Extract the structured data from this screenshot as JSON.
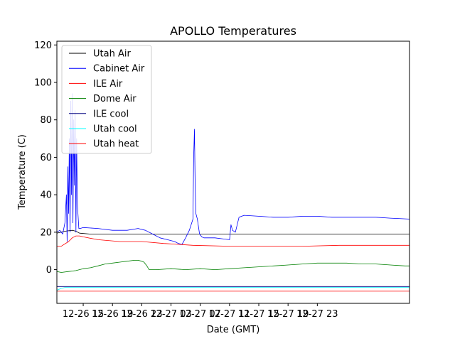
{
  "chart_data": {
    "type": "line",
    "title": "APOLLO Temperatures",
    "xlabel": "Date (GMT)",
    "ylabel": "Temperature (C)",
    "xlim": [
      11.4,
      59.6
    ],
    "ylim": [
      -18,
      122
    ],
    "grid": false,
    "legend_position": "top-left",
    "x_unit": "hours since 12-26 00:00 GMT",
    "x_ticks": [
      {
        "value": 15,
        "label": "12-26 15"
      },
      {
        "value": 19,
        "label": "12-26 19"
      },
      {
        "value": 23,
        "label": "12-26 23"
      },
      {
        "value": 27,
        "label": "12-27 03"
      },
      {
        "value": 31,
        "label": "12-27 07"
      },
      {
        "value": 35,
        "label": "12-27 11"
      },
      {
        "value": 39,
        "label": "12-27 15"
      },
      {
        "value": 43,
        "label": "12-27 19"
      },
      {
        "value": 47,
        "label": "12-27 23"
      }
    ],
    "y_ticks": [
      0,
      20,
      40,
      60,
      80,
      100,
      120
    ],
    "series": [
      {
        "name": "Utah Air",
        "color": "#000000",
        "x": [
          11.4,
          12.5,
          13.5,
          14.0,
          14.5,
          16,
          20,
          25,
          30,
          35,
          40,
          45,
          50,
          55,
          59.6
        ],
        "y": [
          19.5,
          20.5,
          21,
          20.5,
          19.5,
          19,
          19,
          19,
          19,
          19,
          19,
          19,
          19,
          19,
          19
        ]
      },
      {
        "name": "Cabinet Air",
        "color": "#0000ff",
        "x": [
          11.4,
          11.8,
          12.2,
          12.5,
          12.7,
          12.8,
          12.9,
          13.0,
          13.1,
          13.2,
          13.3,
          13.4,
          13.5,
          13.6,
          13.7,
          13.8,
          13.9,
          14.0,
          14.1,
          14.2,
          14.4,
          14.6,
          15,
          17,
          19,
          21,
          22.5,
          23.5,
          24.5,
          25.5,
          26.5,
          27.5,
          28.0,
          28.5,
          29.0,
          29.5,
          30.0,
          30.1,
          30.2,
          30.3,
          30.4,
          30.6,
          30.9,
          31.2,
          31.5,
          32,
          33,
          34,
          35.0,
          35.2,
          35.4,
          35.8,
          36.3,
          37,
          39,
          41,
          43,
          45,
          47,
          49,
          51,
          53,
          55,
          57,
          59.6
        ],
        "y": [
          20,
          21,
          19,
          25,
          40,
          15,
          55,
          30,
          70,
          20,
          90,
          40,
          94,
          25,
          80,
          45,
          85,
          20,
          70,
          35,
          22,
          22,
          22.5,
          22,
          21,
          21,
          22,
          21,
          19,
          17,
          16,
          15,
          14,
          13.5,
          17,
          21,
          27,
          60,
          75,
          45,
          30,
          27,
          19,
          17.5,
          17,
          17,
          17,
          16.5,
          16,
          24,
          21,
          20,
          28,
          29,
          28.5,
          28,
          28,
          28.5,
          28.5,
          28,
          28,
          28,
          28,
          27.5,
          27
        ]
      },
      {
        "name": "ILE Air",
        "color": "#ff0000",
        "x": [
          11.4,
          12,
          13,
          13.5,
          14,
          14.5,
          15,
          17,
          20,
          23,
          26,
          30,
          35,
          40,
          45,
          50,
          55,
          59.6
        ],
        "y": [
          12.5,
          12.5,
          15,
          17,
          18,
          18,
          17.5,
          16,
          15,
          15,
          14,
          13,
          12.5,
          12.5,
          12.5,
          13,
          13,
          13
        ]
      },
      {
        "name": "Dome Air",
        "color": "#008000",
        "x": [
          11.4,
          12,
          13,
          14,
          15,
          16,
          17,
          18,
          19,
          20,
          21,
          22,
          22.5,
          23.0,
          23.3,
          23.7,
          24,
          25,
          27,
          29,
          31,
          33,
          35,
          37,
          39,
          41,
          43,
          45,
          47,
          49,
          51,
          53,
          55,
          57,
          59,
          59.6
        ],
        "y": [
          -1,
          -1.5,
          -1,
          -0.5,
          0.5,
          1,
          2,
          3,
          3.5,
          4,
          4.5,
          5,
          5,
          4.5,
          4,
          2,
          0,
          0,
          0.5,
          0,
          0.5,
          0,
          0.5,
          1,
          1.5,
          2,
          2.5,
          3,
          3.5,
          3.5,
          3.5,
          3,
          3,
          2.5,
          2,
          2
        ]
      },
      {
        "name": "ILE cool",
        "color": "#000080",
        "x": [
          11.4,
          59.6
        ],
        "y": [
          -9,
          -9
        ]
      },
      {
        "name": "Utah cool",
        "color": "#00ffff",
        "x": [
          11.4,
          12,
          12.5,
          13,
          59.6
        ],
        "y": [
          -11,
          -10,
          -9.5,
          -9.5,
          -9.5
        ]
      },
      {
        "name": "Utah heat",
        "color": "#ff0000",
        "x": [
          11.4,
          59.6
        ],
        "y": [
          -11.5,
          -11.5
        ]
      }
    ]
  }
}
